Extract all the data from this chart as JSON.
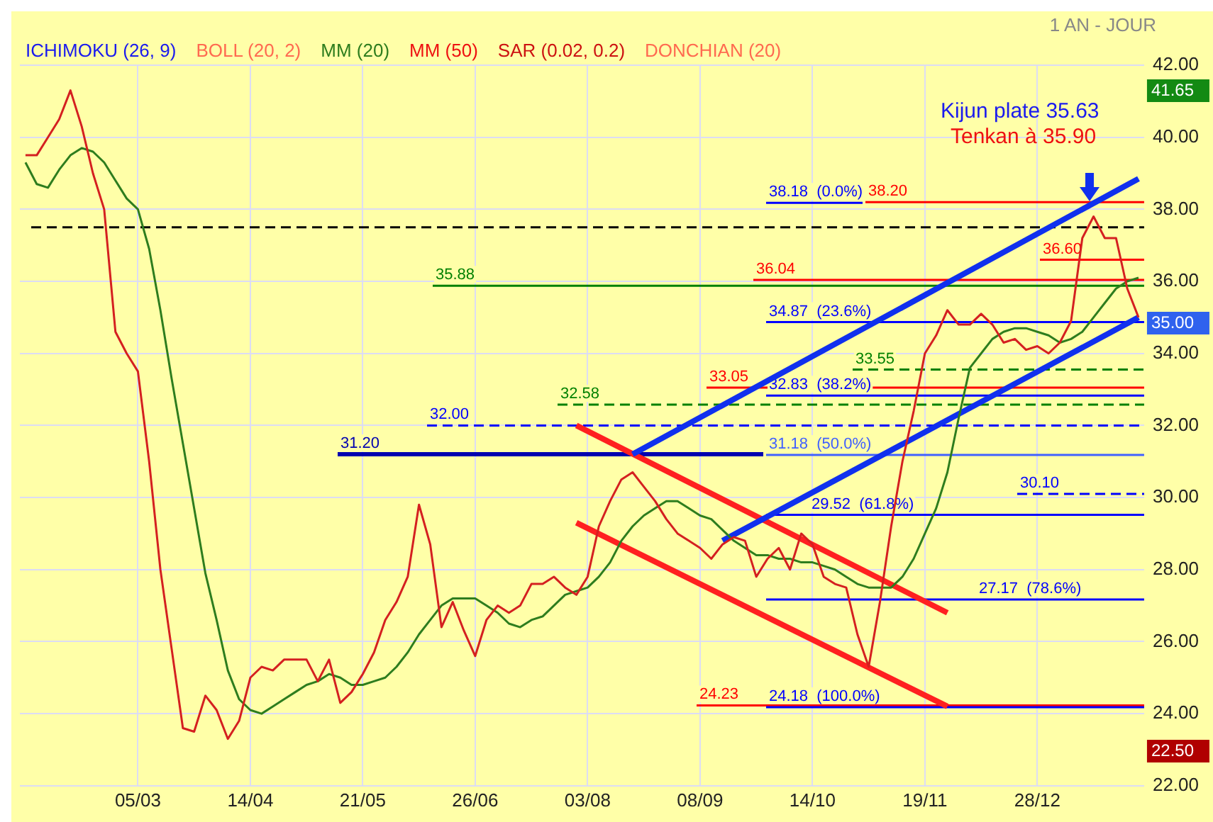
{
  "chart_data": {
    "type": "line",
    "annotations": [
      "1 AN - JOUR",
      "ICHIMOKU (26, 9)",
      "BOLL (20, 2)",
      "MM (50)",
      "SAR (0.02, 0.2)",
      "DONCHIAN (20)",
      "Kijun plate 35.63",
      "Tenkan à 35.90",
      "41.65",
      "35.00",
      "22.50"
    ],
    "categories": [
      null,
      null,
      null,
      null,
      null,
      null,
      null,
      null,
      null,
      null,
      "05/03",
      null,
      null,
      null,
      null,
      null,
      null,
      null,
      null,
      null,
      "14/04",
      null,
      null,
      null,
      null,
      null,
      null,
      null,
      null,
      null,
      "21/05",
      null,
      null,
      null,
      null,
      null,
      null,
      null,
      null,
      null,
      "26/06",
      null,
      null,
      null,
      null,
      null,
      null,
      null,
      null,
      null,
      "03/08",
      null,
      null,
      null,
      null,
      null,
      null,
      null,
      null,
      null,
      "08/09",
      null,
      null,
      null,
      null,
      null,
      null,
      null,
      null,
      null,
      "14/10",
      null,
      null,
      null,
      null,
      null,
      null,
      null,
      null,
      null,
      "19/11",
      null,
      null,
      null,
      null,
      null,
      null,
      null,
      null,
      null,
      "28/12",
      null,
      null,
      null,
      null,
      null,
      null,
      null,
      null,
      null
    ],
    "series": [
      {
        "color": "#d42020",
        "values": [
          39.5,
          39.5,
          40.0,
          40.5,
          41.3,
          40.3,
          39.0,
          38.0,
          34.6,
          34.0,
          33.5,
          31.0,
          28.0,
          25.8,
          23.6,
          23.5,
          24.5,
          24.1,
          23.3,
          23.8,
          25.0,
          25.3,
          25.2,
          25.5,
          25.5,
          25.5,
          24.9,
          25.5,
          24.3,
          24.6,
          25.1,
          25.7,
          26.6,
          27.1,
          27.8,
          29.8,
          28.7,
          26.4,
          27.1,
          26.3,
          25.6,
          26.6,
          27.0,
          26.8,
          27.0,
          27.6,
          27.6,
          27.8,
          27.5,
          27.3,
          27.8,
          29.2,
          29.9,
          30.5,
          30.7,
          30.3,
          29.9,
          29.4,
          29.0,
          28.8,
          28.6,
          28.3,
          28.7,
          28.9,
          28.8,
          27.8,
          28.3,
          28.6,
          28.0,
          29.0,
          28.7,
          27.8,
          27.6,
          27.5,
          26.2,
          25.3,
          27.1,
          29.2,
          31.0,
          32.4,
          34.0,
          34.5,
          35.2,
          34.8,
          34.8,
          35.1,
          34.8,
          34.3,
          34.4,
          34.1,
          34.2,
          34.0,
          34.3,
          34.9,
          37.2,
          37.8,
          37.2,
          37.2,
          35.8,
          35.0
        ]
      },
      {
        "name": "MM (20)",
        "color": "#2e7d1e",
        "values": [
          39.3,
          38.7,
          38.6,
          39.1,
          39.5,
          39.7,
          39.6,
          39.3,
          38.8,
          38.3,
          38.0,
          36.9,
          35.2,
          33.3,
          31.5,
          29.7,
          27.9,
          26.6,
          25.2,
          24.4,
          24.1,
          24.0,
          24.2,
          24.4,
          24.6,
          24.8,
          24.9,
          25.1,
          25.0,
          24.8,
          24.8,
          24.9,
          25.0,
          25.3,
          25.7,
          26.2,
          26.6,
          27.0,
          27.2,
          27.2,
          27.2,
          27.0,
          26.8,
          26.5,
          26.4,
          26.6,
          26.7,
          27.0,
          27.3,
          27.4,
          27.5,
          27.8,
          28.2,
          28.8,
          29.2,
          29.5,
          29.7,
          29.9,
          29.9,
          29.7,
          29.5,
          29.4,
          29.1,
          28.8,
          28.6,
          28.4,
          28.4,
          28.3,
          28.3,
          28.2,
          28.2,
          28.1,
          28.0,
          27.8,
          27.6,
          27.5,
          27.5,
          27.5,
          27.8,
          28.3,
          29.0,
          29.7,
          30.7,
          32.2,
          33.6,
          34.0,
          34.4,
          34.6,
          34.7,
          34.7,
          34.6,
          34.5,
          34.3,
          34.4,
          34.6,
          35.0,
          35.4,
          35.8,
          36.0,
          36.1
        ]
      },
      {
        "color": "#1030ee",
        "values": [
          null,
          null,
          null,
          null,
          null,
          null,
          null,
          null,
          null,
          null,
          null,
          null,
          null,
          null,
          null,
          null,
          null,
          null,
          null,
          null,
          null,
          null,
          null,
          null,
          null,
          null,
          null,
          null,
          null,
          null,
          null,
          null,
          null,
          null,
          null,
          null,
          null,
          null,
          null,
          null,
          null,
          null,
          null,
          null,
          null,
          null,
          null,
          null,
          null,
          null,
          null,
          null,
          null,
          null,
          31.2,
          null,
          null,
          null,
          null,
          null,
          null,
          null,
          null,
          null,
          null,
          null,
          null,
          null,
          null,
          null,
          null,
          null,
          null,
          null,
          null,
          null,
          null,
          null,
          null,
          null,
          null,
          null,
          null,
          null,
          null,
          null,
          null,
          null,
          null,
          null,
          null,
          null,
          null,
          null,
          null,
          null,
          null,
          null,
          null,
          38.85
        ]
      },
      {
        "color": "#1030ee",
        "values": [
          null,
          null,
          null,
          null,
          null,
          null,
          null,
          null,
          null,
          null,
          null,
          null,
          null,
          null,
          null,
          null,
          null,
          null,
          null,
          null,
          null,
          null,
          null,
          null,
          null,
          null,
          null,
          null,
          null,
          null,
          null,
          null,
          null,
          null,
          null,
          null,
          null,
          null,
          null,
          null,
          null,
          null,
          null,
          null,
          null,
          null,
          null,
          null,
          null,
          null,
          null,
          null,
          null,
          null,
          null,
          null,
          null,
          null,
          null,
          null,
          null,
          null,
          28.8,
          null,
          null,
          null,
          null,
          null,
          null,
          null,
          null,
          null,
          null,
          null,
          null,
          null,
          null,
          null,
          null,
          null,
          null,
          null,
          null,
          null,
          null,
          null,
          null,
          null,
          null,
          null,
          null,
          null,
          null,
          null,
          null,
          null,
          null,
          null,
          null,
          35.0
        ]
      },
      {
        "color": "#ff2020",
        "values": [
          null,
          null,
          null,
          null,
          null,
          null,
          null,
          null,
          null,
          null,
          null,
          null,
          null,
          null,
          null,
          null,
          null,
          null,
          null,
          null,
          null,
          null,
          null,
          null,
          null,
          null,
          null,
          null,
          null,
          null,
          null,
          null,
          null,
          null,
          null,
          null,
          null,
          null,
          null,
          null,
          null,
          null,
          null,
          null,
          null,
          null,
          null,
          null,
          null,
          32.0,
          null,
          null,
          null,
          null,
          null,
          null,
          null,
          null,
          null,
          null,
          null,
          null,
          null,
          null,
          null,
          null,
          null,
          null,
          null,
          null,
          null,
          null,
          null,
          null,
          null,
          null,
          null,
          null,
          null,
          null,
          null,
          null,
          26.8,
          null,
          null,
          null,
          null,
          null,
          null,
          null,
          null,
          null,
          null,
          null,
          null,
          null,
          null,
          null,
          null,
          null
        ]
      },
      {
        "color": "#ff2020",
        "values": [
          null,
          null,
          null,
          null,
          null,
          null,
          null,
          null,
          null,
          null,
          null,
          null,
          null,
          null,
          null,
          null,
          null,
          null,
          null,
          null,
          null,
          null,
          null,
          null,
          null,
          null,
          null,
          null,
          null,
          null,
          null,
          null,
          null,
          null,
          null,
          null,
          null,
          null,
          null,
          null,
          null,
          null,
          null,
          null,
          null,
          null,
          null,
          null,
          null,
          29.3,
          null,
          null,
          null,
          null,
          null,
          null,
          null,
          null,
          null,
          null,
          null,
          null,
          null,
          null,
          null,
          null,
          null,
          null,
          null,
          null,
          null,
          null,
          null,
          null,
          null,
          null,
          null,
          null,
          null,
          null,
          null,
          null,
          24.2,
          null,
          null,
          null,
          null,
          null,
          null,
          null,
          null,
          null,
          null,
          null,
          null,
          null,
          null,
          null,
          null,
          null
        ]
      }
    ],
    "ylim": [
      22,
      42
    ],
    "yticks": [
      {
        "value": 22,
        "label": "22.00"
      },
      {
        "value": 24,
        "label": "24.00"
      },
      {
        "value": 26,
        "label": "26.00"
      },
      {
        "value": 28,
        "label": "28.00"
      },
      {
        "value": 30,
        "label": "30.00"
      },
      {
        "value": 32,
        "label": "32.00"
      },
      {
        "value": 34,
        "label": "34.00"
      },
      {
        "value": 36,
        "label": "36.00"
      },
      {
        "value": 38,
        "label": "38.00"
      },
      {
        "value": 40,
        "label": "40.00"
      },
      {
        "value": 42,
        "label": "42.00"
      }
    ],
    "ref_lines": [
      {
        "axis": "y",
        "value": 38.18,
        "label": "38.18  (0.0%)",
        "color": "#0000ff"
      },
      {
        "axis": "y",
        "value": 38.2,
        "label": "38.20",
        "color": "#ff0000"
      },
      {
        "axis": "y",
        "value": 36.6,
        "label": "36.60",
        "color": "#ff0000"
      },
      {
        "axis": "y",
        "value": 36.04,
        "label": "36.04",
        "color": "#ff0000"
      },
      {
        "axis": "y",
        "value": 35.88,
        "label": "35.88",
        "color": "#008000"
      },
      {
        "axis": "y",
        "value": 34.87,
        "label": "34.87  (23.6%)",
        "color": "#0000ff"
      },
      {
        "axis": "y",
        "value": 33.55,
        "label": "33.55",
        "color": "#008000",
        "line_style": "dashed"
      },
      {
        "axis": "y",
        "value": 33.05,
        "label": "33.05",
        "color": "#ff0000"
      },
      {
        "axis": "y",
        "value": 32.83,
        "label": "32.83  (38.2%)",
        "color": "#0000ff"
      },
      {
        "axis": "y",
        "value": 32.58,
        "label": "32.58",
        "color": "#008000",
        "line_style": "dashed"
      },
      {
        "axis": "y",
        "value": 32.0,
        "label": "32.00",
        "color": "#0000ff",
        "line_style": "dashed"
      },
      {
        "axis": "y",
        "value": 31.2,
        "label": "31.20",
        "color": "#0000b0"
      },
      {
        "axis": "y",
        "value": 31.18,
        "label": "31.18  (50.0%)",
        "color": "#4060ff"
      },
      {
        "axis": "y",
        "value": 30.1,
        "label": "30.10",
        "color": "#0000ff",
        "line_style": "dashed"
      },
      {
        "axis": "y",
        "value": 29.52,
        "label": "29.52  (61.8%)",
        "color": "#0000ff"
      },
      {
        "axis": "y",
        "value": 27.17,
        "label": "27.17  (78.6%)",
        "color": "#0000ff"
      },
      {
        "axis": "y",
        "value": 24.23,
        "label": "24.23",
        "color": "#ff0000"
      },
      {
        "axis": "y",
        "value": 24.18,
        "label": "24.18  (100.0%)",
        "color": "#0000ff"
      },
      {
        "axis": "y",
        "value": 37.5,
        "color": "#000000",
        "line_style": "dashed"
      }
    ],
    "grid": true,
    "legend": "top",
    "marker": "none",
    "line_style": "solid"
  }
}
